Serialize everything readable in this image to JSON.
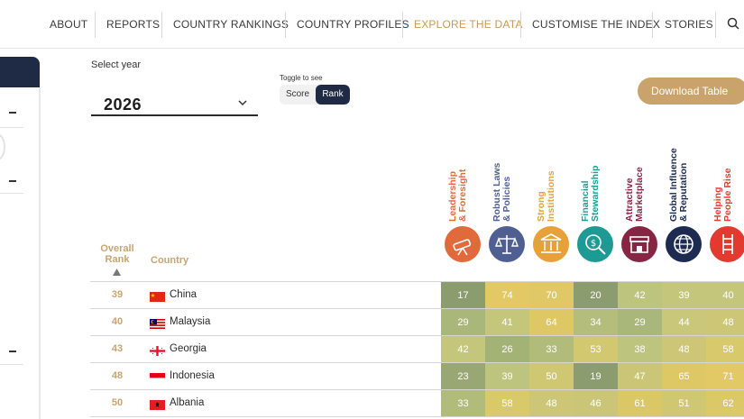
{
  "nav": {
    "items": [
      "ABOUT",
      "REPORTS",
      "COUNTRY RANKINGS",
      "COUNTRY PROFILES",
      "EXPLORE THE DATA",
      "CUSTOMISE THE INDEX",
      "STORIES"
    ],
    "active": "EXPLORE THE DATA",
    "search_icon": "search-icon"
  },
  "controls": {
    "year_label": "Select year",
    "year_value": "2026",
    "toggle_hint": "Toggle to see",
    "toggle_score": "Score",
    "toggle_rank": "Rank",
    "toggle_selected": "Rank",
    "download_label": "Download Table"
  },
  "table": {
    "overall_rank_header": "Overall Rank",
    "country_header": "Country",
    "pillars": [
      {
        "label_line1": "Leadership",
        "label_line2": "& Foresight",
        "color": "#e06a3b",
        "icon": "telescope-icon"
      },
      {
        "label_line1": "Robust Laws",
        "label_line2": "& Policies",
        "color": "#4f5f92",
        "icon": "scales-icon"
      },
      {
        "label_line1": "Strong",
        "label_line2": "Institutions",
        "color": "#e7a03a",
        "icon": "building-icon"
      },
      {
        "label_line1": "Financial",
        "label_line2": "Stewardship",
        "color": "#1c9a93",
        "icon": "money-search-icon"
      },
      {
        "label_line1": "Attractive",
        "label_line2": "Marketplace",
        "color": "#862544",
        "icon": "storefront-icon"
      },
      {
        "label_line1": "Global Influence",
        "label_line2": "& Reputation",
        "color": "#1d2b52",
        "icon": "globe-icon"
      },
      {
        "label_line1": "Helping",
        "label_line2": "People Rise",
        "color": "#e23a2f",
        "icon": "ladder-icon"
      }
    ],
    "rows": [
      {
        "rank": "39",
        "country": "China",
        "flag": "china-flag",
        "values": [
          "17",
          "74",
          "70",
          "20",
          "42",
          "39",
          "40"
        ],
        "colors": [
          "#8b9c6e",
          "#e3c866",
          "#e1c866",
          "#8b9c6e",
          "#bcc47e",
          "#c4c67c",
          "#c4c67c"
        ]
      },
      {
        "rank": "40",
        "country": "Malaysia",
        "flag": "malaysia-flag",
        "values": [
          "29",
          "41",
          "64",
          "34",
          "29",
          "44",
          "48"
        ],
        "colors": [
          "#a9b77a",
          "#c4c67c",
          "#ddc865",
          "#b4bd7c",
          "#a9b77a",
          "#c8c77a",
          "#cdc676"
        ]
      },
      {
        "rank": "43",
        "country": "Georgia",
        "flag": "georgia-flag",
        "values": [
          "42",
          "26",
          "33",
          "53",
          "38",
          "48",
          "58"
        ],
        "colors": [
          "#c4c67c",
          "#a3b376",
          "#b1bc7b",
          "#d2c870",
          "#bcc47e",
          "#cdc676",
          "#d8c96a"
        ]
      },
      {
        "rank": "48",
        "country": "Indonesia",
        "flag": "indonesia-flag",
        "values": [
          "23",
          "39",
          "50",
          "19",
          "47",
          "65",
          "71"
        ],
        "colors": [
          "#98a774",
          "#bcc47e",
          "#d0c772",
          "#8b9c6e",
          "#cbc677",
          "#ddc865",
          "#e3c866"
        ]
      },
      {
        "rank": "50",
        "country": "Albania",
        "flag": "albania-flag",
        "values": [
          "33",
          "58",
          "48",
          "46",
          "61",
          "51",
          "62"
        ],
        "colors": [
          "#b1bc7b",
          "#d8c96a",
          "#cdc676",
          "#cbc677",
          "#dac867",
          "#d0c772",
          "#dbc866"
        ]
      }
    ]
  }
}
